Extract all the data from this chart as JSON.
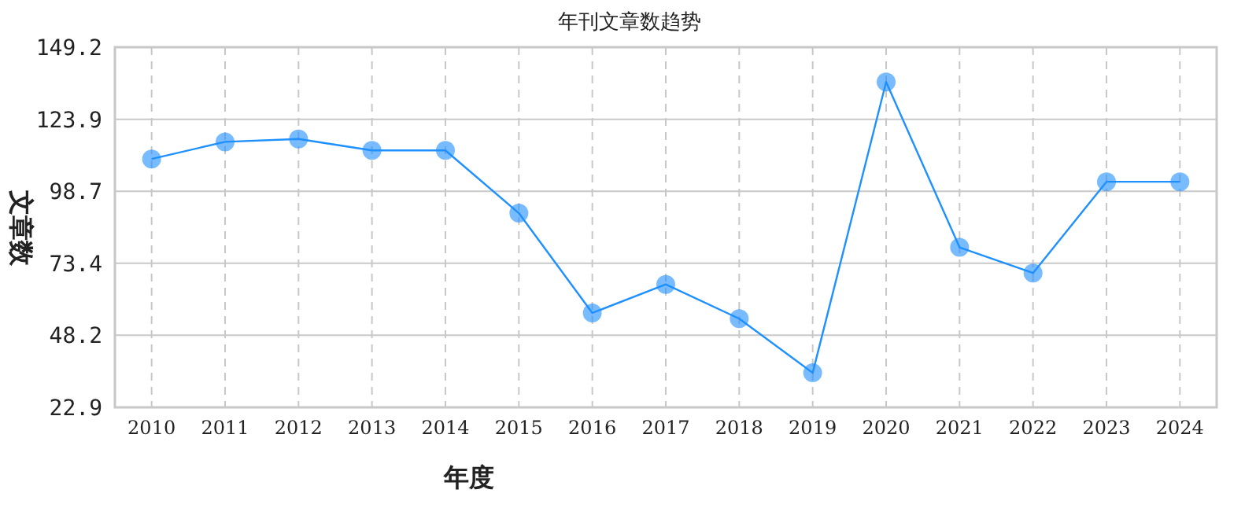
{
  "chart_data": {
    "type": "line",
    "title": "年刊文章数趋势",
    "xlabel": "年度",
    "ylabel": "文章数",
    "categories": [
      "2010",
      "2011",
      "2012",
      "2013",
      "2014",
      "2015",
      "2016",
      "2017",
      "2018",
      "2019",
      "2020",
      "2021",
      "2022",
      "2023",
      "2024"
    ],
    "values": [
      110,
      116,
      117,
      113,
      113,
      91,
      56,
      66,
      54,
      35,
      137,
      79,
      70,
      102,
      102
    ],
    "color": "#1e90ff",
    "marker": "circle",
    "grid": true,
    "ylim": [
      22.9,
      149.2
    ],
    "yticks": [
      22.9,
      48.2,
      73.4,
      98.7,
      123.9,
      149.2
    ]
  }
}
